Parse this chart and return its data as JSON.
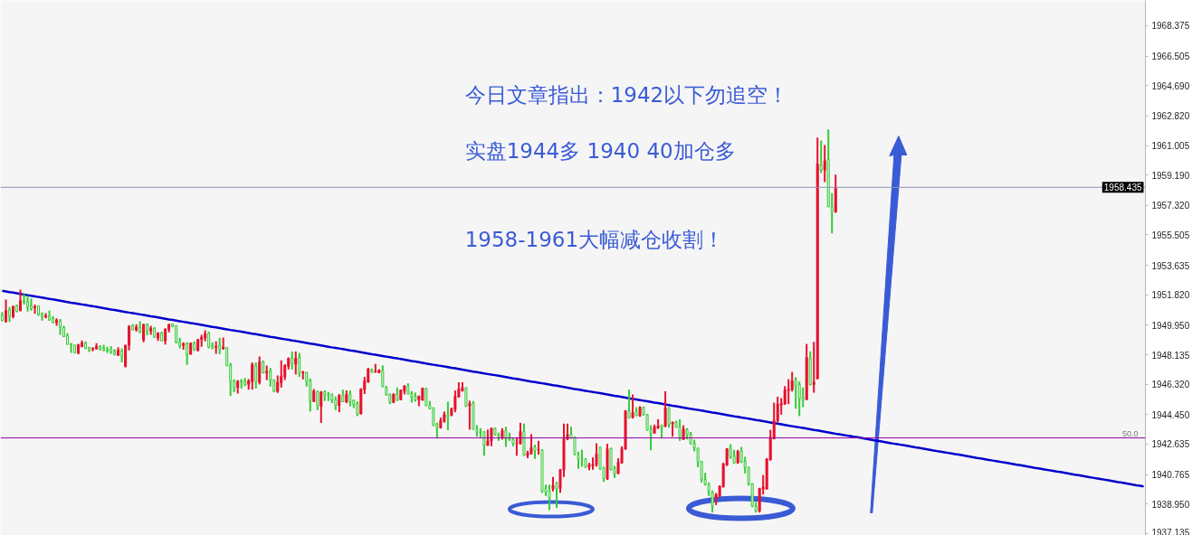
{
  "chart_data": {
    "type": "candlestick",
    "categories": [
      null,
      null,
      null,
      null,
      null,
      null,
      null,
      null,
      null,
      null,
      null,
      null,
      null,
      null,
      null,
      null,
      null,
      null,
      null,
      null,
      null,
      null,
      null,
      null,
      null,
      null,
      null,
      null,
      null,
      null,
      null,
      null,
      null,
      null,
      null,
      null,
      null,
      null,
      null,
      null,
      null,
      null,
      null,
      null,
      null,
      null,
      null,
      null,
      null,
      null,
      null,
      null,
      null,
      null,
      null,
      null,
      null,
      null,
      null,
      null,
      null,
      null,
      null,
      null,
      null,
      null,
      null,
      null,
      null,
      null,
      null,
      null,
      null,
      null,
      null,
      null,
      null,
      null,
      null,
      null,
      null,
      null,
      null,
      null,
      null,
      null,
      null,
      null,
      null,
      null,
      null,
      null,
      null,
      null,
      null,
      null,
      null,
      null,
      null,
      null,
      null,
      null,
      null,
      null,
      null,
      null,
      null,
      null,
      null,
      null,
      null,
      null,
      null,
      null,
      null,
      null,
      null,
      null,
      null,
      null,
      null,
      null,
      null,
      null,
      null,
      null,
      null,
      null,
      null,
      null,
      null,
      null,
      null,
      null,
      null,
      null,
      null,
      null,
      null,
      null,
      null,
      null,
      null,
      null,
      null,
      null,
      null,
      null,
      null,
      null,
      null,
      null,
      null,
      null,
      null,
      null,
      null,
      null,
      null,
      null,
      null,
      null,
      null,
      null,
      null,
      null,
      null,
      null,
      null,
      null,
      null,
      null,
      null,
      null,
      null,
      null,
      null,
      null,
      null,
      null,
      null,
      null,
      null,
      null,
      null,
      null,
      null,
      null,
      null,
      null,
      null,
      null,
      null,
      null,
      null,
      null,
      null,
      null,
      null,
      null,
      null,
      null,
      null,
      null,
      null,
      null,
      null,
      null,
      null,
      null,
      null,
      null,
      null,
      null,
      null,
      null,
      null,
      null,
      null,
      null,
      null,
      null,
      null,
      null,
      null,
      null,
      null,
      null,
      null,
      null,
      null,
      null,
      null,
      null,
      null,
      null,
      null,
      null,
      null,
      null,
      null,
      null,
      null,
      null,
      null,
      null,
      null,
      null,
      null,
      null,
      null,
      null,
      null,
      null,
      null,
      null,
      null,
      null,
      null,
      null,
      null,
      null,
      null,
      null,
      null,
      null,
      null,
      null,
      null,
      null,
      null,
      null,
      null,
      null,
      null,
      null,
      null,
      null,
      null,
      null,
      null,
      null,
      null,
      null,
      null,
      null,
      null,
      null,
      null,
      null,
      null,
      null,
      null,
      null,
      null,
      null,
      null,
      null,
      null,
      null,
      null,
      null,
      null,
      null,
      null,
      null,
      null,
      null,
      null,
      null,
      null,
      null,
      null,
      null,
      null,
      null
    ],
    "ohlc": [
      [
        1950.57,
        1950.77,
        1950.2,
        1950.24
      ],
      [
        1950.2,
        1951.53,
        1950.11,
        1950.85
      ],
      [
        1950.88,
        1951.07,
        1950.16,
        1950.51
      ],
      [
        1950.48,
        1951.12,
        1950.38,
        1951.12
      ],
      [
        1951.16,
        1951.22,
        1950.75,
        1950.79
      ],
      [
        1950.83,
        1952.14,
        1950.83,
        1951.46
      ],
      [
        1951.42,
        1951.87,
        1951.22,
        1951.37
      ],
      [
        1951.37,
        1951.77,
        1950.79,
        1951.09
      ],
      [
        1951.14,
        1951.59,
        1950.85,
        1950.98
      ],
      [
        1951.01,
        1951.22,
        1950.66,
        1951.09
      ],
      [
        1951.14,
        1951.14,
        1950.53,
        1950.62
      ],
      [
        1950.64,
        1950.75,
        1950.24,
        1950.49
      ],
      [
        1950.46,
        1950.7,
        1950.38,
        1950.53
      ],
      [
        1950.51,
        1950.85,
        1950.24,
        1950.27
      ],
      [
        1950.37,
        1950.51,
        1950.07,
        1950.11
      ],
      [
        1950.11,
        1950.38,
        1949.92,
        1950.27
      ],
      [
        1950.2,
        1950.33,
        1949.36,
        1949.83
      ],
      [
        1949.81,
        1949.92,
        1949.22,
        1949.25
      ],
      [
        1949.31,
        1949.46,
        1948.77,
        1948.77
      ],
      [
        1948.81,
        1948.85,
        1948.25,
        1948.77
      ],
      [
        1948.74,
        1948.74,
        1948.25,
        1948.25
      ],
      [
        1948.25,
        1948.81,
        1948.16,
        1948.75
      ],
      [
        1948.64,
        1949.01,
        1948.59,
        1948.86
      ],
      [
        1948.86,
        1948.96,
        1948.48,
        1948.53
      ],
      [
        1948.57,
        1948.62,
        1948.31,
        1948.42
      ],
      [
        1948.49,
        1948.59,
        1948.35,
        1948.53
      ],
      [
        1948.49,
        1948.85,
        1948.48,
        1948.66
      ],
      [
        1948.64,
        1948.72,
        1948.4,
        1948.48
      ],
      [
        1948.53,
        1948.75,
        1948.36,
        1948.4
      ],
      [
        1948.42,
        1948.62,
        1948.25,
        1948.38
      ],
      [
        1948.51,
        1948.66,
        1948.2,
        1948.31
      ],
      [
        1948.33,
        1948.49,
        1948.1,
        1948.16
      ],
      [
        1948.1,
        1948.59,
        1948.07,
        1948.42
      ],
      [
        1948.36,
        1948.53,
        1947.66,
        1948.07
      ],
      [
        1947.42,
        1948.75,
        1947.36,
        1948.72
      ],
      [
        1948.72,
        1949.96,
        1948.4,
        1949.87
      ],
      [
        1949.92,
        1950.01,
        1949.64,
        1949.66
      ],
      [
        1949.68,
        1950.01,
        1949.55,
        1949.83
      ],
      [
        1949.83,
        1950.2,
        1949.46,
        1949.55
      ],
      [
        1949.05,
        1950.01,
        1948.9,
        1950.01
      ],
      [
        1949.97,
        1950.07,
        1949.33,
        1949.6
      ],
      [
        1949.6,
        1949.92,
        1949.36,
        1949.77
      ],
      [
        1949.77,
        1949.83,
        1949.18,
        1949.21
      ],
      [
        1949.16,
        1949.49,
        1948.99,
        1949.49
      ],
      [
        1949.47,
        1949.55,
        1948.96,
        1948.99
      ],
      [
        1948.99,
        1949.77,
        1948.77,
        1949.7
      ],
      [
        1949.7,
        1950.01,
        1949.51,
        1950.01
      ],
      [
        1950.01,
        1950.07,
        1949.83,
        1949.88
      ],
      [
        1949.92,
        1949.92,
        1948.84,
        1948.9
      ],
      [
        1948.9,
        1949.18,
        1948.53,
        1948.71
      ],
      [
        1948.71,
        1948.9,
        1948.44,
        1948.81
      ],
      [
        1948.81,
        1948.9,
        1947.51,
        1948.16
      ],
      [
        1948.16,
        1948.86,
        1948.16,
        1948.86
      ],
      [
        1948.84,
        1948.96,
        1948.38,
        1948.44
      ],
      [
        1948.38,
        1949.08,
        1948.38,
        1949.08
      ],
      [
        1949.08,
        1949.36,
        1948.62,
        1949.2
      ],
      [
        1949.16,
        1949.64,
        1948.96,
        1949.42
      ],
      [
        1949.46,
        1949.55,
        1948.53,
        1948.6
      ],
      [
        1948.7,
        1948.9,
        1948.47,
        1948.58
      ],
      [
        1948.6,
        1948.96,
        1948.2,
        1948.66
      ],
      [
        1948.7,
        1949.18,
        1948.16,
        1948.49
      ],
      [
        1948.51,
        1949.2,
        1948.44,
        1948.6
      ],
      [
        1948.58,
        1948.58,
        1947.45,
        1947.45
      ],
      [
        1947.47,
        1947.64,
        1945.6,
        1946.49
      ],
      [
        1946.53,
        1946.62,
        1945.84,
        1946.1
      ],
      [
        1946.12,
        1946.58,
        1945.75,
        1946.49
      ],
      [
        1946.55,
        1946.64,
        1946.06,
        1946.44
      ],
      [
        1946.47,
        1946.71,
        1946.21,
        1946.27
      ],
      [
        1946.32,
        1946.64,
        1945.99,
        1946.53
      ],
      [
        1946.49,
        1947.66,
        1945.99,
        1947.55
      ],
      [
        1947.47,
        1947.66,
        1946.06,
        1946.44
      ],
      [
        1946.44,
        1948.03,
        1946.31,
        1947.7
      ],
      [
        1947.73,
        1947.77,
        1946.99,
        1947.01
      ],
      [
        1947.01,
        1947.47,
        1946.58,
        1947.1
      ],
      [
        1947.14,
        1947.32,
        1946.18,
        1946.56
      ],
      [
        1946.58,
        1946.62,
        1945.84,
        1945.88
      ],
      [
        1945.88,
        1946.86,
        1945.79,
        1946.44
      ],
      [
        1946.4,
        1947.79,
        1946.12,
        1946.81
      ],
      [
        1946.77,
        1947.55,
        1946.58,
        1947.47
      ],
      [
        1947.42,
        1947.97,
        1947.23,
        1947.92
      ],
      [
        1947.92,
        1948.34,
        1947.23,
        1947.58
      ],
      [
        1947.55,
        1948.34,
        1946.92,
        1947.92
      ],
      [
        1947.97,
        1948.25,
        1946.77,
        1947.01
      ],
      [
        1947.01,
        1947.14,
        1946.62,
        1947.08
      ],
      [
        1947.05,
        1947.08,
        1946.18,
        1946.49
      ],
      [
        1946.53,
        1946.68,
        1944.64,
        1945.29
      ],
      [
        1945.25,
        1946.03,
        1945.25,
        1945.9
      ],
      [
        1945.85,
        1945.94,
        1944.73,
        1945.01
      ],
      [
        1944.97,
        1945.9,
        1943.94,
        1945.85
      ],
      [
        1945.86,
        1945.94,
        1945.29,
        1945.66
      ],
      [
        1945.72,
        1945.85,
        1945.29,
        1945.66
      ],
      [
        1945.7,
        1945.75,
        1945.16,
        1945.35
      ],
      [
        1945.36,
        1945.57,
        1944.73,
        1945.01
      ],
      [
        1945.01,
        1945.72,
        1944.6,
        1945.62
      ],
      [
        1945.62,
        1945.99,
        1945.23,
        1945.25
      ],
      [
        1945.23,
        1945.94,
        1945.16,
        1945.7
      ],
      [
        1945.75,
        1945.94,
        1944.96,
        1945.25
      ],
      [
        1945.33,
        1945.38,
        1944.86,
        1945.05
      ],
      [
        1945.14,
        1945.27,
        1944.36,
        1944.49
      ],
      [
        1944.49,
        1946.07,
        1944.49,
        1946.03
      ],
      [
        1945.99,
        1946.77,
        1945.72,
        1946.53
      ],
      [
        1946.44,
        1947.33,
        1946.44,
        1947.25
      ],
      [
        1947.22,
        1947.29,
        1947.01,
        1947.11
      ],
      [
        1947.07,
        1947.57,
        1947.03,
        1947.12
      ],
      [
        1947.03,
        1947.24,
        1947.01,
        1947.2
      ],
      [
        1947.18,
        1947.48,
        1946.16,
        1946.16
      ],
      [
        1946.12,
        1946.22,
        1945.62,
        1945.66
      ],
      [
        1945.7,
        1945.75,
        1945.1,
        1945.2
      ],
      [
        1945.2,
        1945.75,
        1945.16,
        1945.72
      ],
      [
        1945.7,
        1946.12,
        1945.29,
        1945.35
      ],
      [
        1945.36,
        1945.99,
        1945.35,
        1945.97
      ],
      [
        1945.9,
        1946.23,
        1945.7,
        1946.23
      ],
      [
        1946.23,
        1946.38,
        1945.7,
        1945.72
      ],
      [
        1945.75,
        1945.9,
        1945.2,
        1945.53
      ],
      [
        1945.57,
        1945.81,
        1945.25,
        1945.36
      ],
      [
        1945.36,
        1945.62,
        1944.97,
        1945.59
      ],
      [
        1945.33,
        1946.09,
        1945.33,
        1946.09
      ],
      [
        1946.07,
        1946.09,
        1944.97,
        1945.01
      ],
      [
        1945.01,
        1945.29,
        1944.77,
        1944.83
      ],
      [
        1944.88,
        1944.88,
        1943.77,
        1943.77
      ],
      [
        1943.86,
        1943.96,
        1943.01,
        1943.66
      ],
      [
        1943.64,
        1944.27,
        1943.59,
        1944.09
      ],
      [
        1944.03,
        1944.64,
        1943.96,
        1944.46
      ],
      [
        1944.42,
        1945.25,
        1943.49,
        1944.32
      ],
      [
        1944.4,
        1944.88,
        1944.36,
        1944.82
      ],
      [
        1944.77,
        1945.94,
        1944.6,
        1945.57
      ],
      [
        1945.53,
        1946.44,
        1945.51,
        1946.03
      ],
      [
        1945.9,
        1946.45,
        1945.88,
        1946.12
      ],
      [
        1946.12,
        1946.12,
        1944.92,
        1944.97
      ],
      [
        1944.99,
        1945.31,
        1943.53,
        1945.14
      ],
      [
        1945.14,
        1945.29,
        1943.53,
        1943.56
      ],
      [
        1943.56,
        1943.81,
        1943.1,
        1943.38
      ],
      [
        1943.4,
        1943.62,
        1943.06,
        1943.36
      ],
      [
        1943.4,
        1943.43,
        1941.92,
        1942.55
      ],
      [
        1942.55,
        1943.53,
        1942.55,
        1942.84
      ],
      [
        1942.82,
        1943.62,
        1942.51,
        1943.62
      ],
      [
        1943.62,
        1943.66,
        1943.16,
        1943.21
      ],
      [
        1943.21,
        1943.34,
        1942.84,
        1943.1
      ],
      [
        1943.06,
        1943.62,
        1942.92,
        1943.47
      ],
      [
        1943.47,
        1943.71,
        1942.47,
        1942.97
      ],
      [
        1943.06,
        1943.34,
        1942.84,
        1942.93
      ],
      [
        1942.93,
        1943.03,
        1942.51,
        1942.66
      ],
      [
        1942.66,
        1943.06,
        1941.92,
        1942.69
      ],
      [
        1942.66,
        1943.95,
        1942.62,
        1943.42
      ],
      [
        1943.42,
        1943.9,
        1941.92,
        1941.95
      ],
      [
        1941.92,
        1942.23,
        1941.77,
        1942.1
      ],
      [
        1942.04,
        1943.25,
        1941.99,
        1942.42
      ],
      [
        1942.47,
        1942.6,
        1941.73,
        1942.23
      ],
      [
        1942.27,
        1942.84,
        1941.99,
        1942.3
      ],
      [
        1942.28,
        1942.32,
        1939.64,
        1939.73
      ],
      [
        1939.91,
        1940.14,
        1939.45,
        1939.69
      ],
      [
        1939.78,
        1940.14,
        1938.58,
        1939.32
      ],
      [
        1939.88,
        1940.62,
        1939.73,
        1940.1
      ],
      [
        1940.23,
        1940.32,
        1938.71,
        1939.88
      ],
      [
        1939.91,
        1941.08,
        1939.64,
        1941.08
      ],
      [
        1941.03,
        1943.9,
        1940.62,
        1942.97
      ],
      [
        1942.92,
        1943.9,
        1942.88,
        1943.25
      ],
      [
        1943.25,
        1943.71,
        1942.97,
        1943.03
      ],
      [
        1943.06,
        1943.1,
        1941.95,
        1941.99
      ],
      [
        1941.95,
        1942.17,
        1941.12,
        1941.71
      ],
      [
        1941.75,
        1942.29,
        1941.25,
        1941.71
      ],
      [
        1941.73,
        1941.77,
        1941.17,
        1941.21
      ],
      [
        1941.21,
        1941.49,
        1941.03,
        1941.38
      ],
      [
        1941.3,
        1941.82,
        1941.06,
        1941.43
      ],
      [
        1941.36,
        1942.69,
        1941.25,
        1942.04
      ],
      [
        1942.45,
        1942.47,
        1941.06,
        1941.12
      ],
      [
        1941.17,
        1941.25,
        1940.32,
        1940.51
      ],
      [
        1940.47,
        1942.66,
        1940.47,
        1942.36
      ],
      [
        1942.36,
        1942.42,
        1941.03,
        1941.06
      ],
      [
        1941.15,
        1941.3,
        1940.56,
        1940.82
      ],
      [
        1940.82,
        1941.77,
        1940.8,
        1941.53
      ],
      [
        1941.48,
        1942.5,
        1941.43,
        1942.36
      ],
      [
        1942.32,
        1944.73,
        1942.32,
        1944.69
      ],
      [
        1944.69,
        1945.99,
        1944.21,
        1944.26
      ],
      [
        1944.26,
        1945.69,
        1944.21,
        1944.58
      ],
      [
        1944.63,
        1944.91,
        1944.36,
        1944.39
      ],
      [
        1944.36,
        1944.97,
        1944.32,
        1944.91
      ],
      [
        1944.91,
        1944.95,
        1944.39,
        1944.45
      ],
      [
        1944.45,
        1944.5,
        1943.47,
        1943.5
      ],
      [
        1943.52,
        1943.8,
        1942.26,
        1943.3
      ],
      [
        1943.3,
        1943.84,
        1943.28,
        1943.71
      ],
      [
        1943.62,
        1944.17,
        1943.58,
        1943.76
      ],
      [
        1943.8,
        1943.84,
        1943.02,
        1943.67
      ],
      [
        1943.71,
        1945.89,
        1943.71,
        1944.86
      ],
      [
        1944.86,
        1944.91,
        1943.65,
        1943.84
      ],
      [
        1943.89,
        1944.02,
        1943.1,
        1943.99
      ],
      [
        1943.97,
        1944.08,
        1943.65,
        1943.67
      ],
      [
        1943.71,
        1944.17,
        1942.84,
        1942.97
      ],
      [
        1942.93,
        1943.8,
        1942.91,
        1943.58
      ],
      [
        1943.52,
        1943.62,
        1942.93,
        1943.21
      ],
      [
        1943.25,
        1943.39,
        1942.6,
        1942.65
      ],
      [
        1942.69,
        1942.91,
        1942.19,
        1942.41
      ],
      [
        1942.39,
        1942.41,
        1941.21,
        1941.54
      ],
      [
        1941.58,
        1941.61,
        1940.28,
        1940.47
      ],
      [
        1940.47,
        1940.87,
        1940.09,
        1940.15
      ],
      [
        1940.17,
        1940.28,
        1939.45,
        1939.72
      ],
      [
        1939.67,
        1939.78,
        1938.43,
        1938.83
      ],
      [
        1939.32,
        1939.63,
        1938.89,
        1939.54
      ],
      [
        1939.45,
        1940.09,
        1939.35,
        1940.06
      ],
      [
        1940.0,
        1941.48,
        1939.98,
        1941.43
      ],
      [
        1941.34,
        1942.39,
        1941.3,
        1942.36
      ],
      [
        1942.36,
        1942.63,
        1941.73,
        1941.86
      ],
      [
        1941.91,
        1942.28,
        1941.43,
        1941.48
      ],
      [
        1941.48,
        1942.28,
        1941.43,
        1942.19
      ],
      [
        1942.23,
        1942.47,
        1941.48,
        1941.54
      ],
      [
        1941.58,
        1941.86,
        1940.84,
        1941.21
      ],
      [
        1941.21,
        1941.24,
        1940.09,
        1940.17
      ],
      [
        1940.19,
        1940.24,
        1938.76,
        1938.83
      ],
      [
        1938.8,
        1939.08,
        1938.43,
        1938.52
      ],
      [
        1938.52,
        1939.95,
        1938.43,
        1939.91
      ],
      [
        1939.87,
        1940.74,
        1939.54,
        1940.0
      ],
      [
        1939.87,
        1941.76,
        1939.87,
        1941.73
      ],
      [
        1941.67,
        1943.52,
        1941.62,
        1943.02
      ],
      [
        1942.97,
        1945.19,
        1942.93,
        1944.08
      ],
      [
        1944.08,
        1945.56,
        1943.98,
        1945.1
      ],
      [
        1945.04,
        1945.47,
        1944.45,
        1945.15
      ],
      [
        1945.1,
        1946.21,
        1945.06,
        1945.97
      ],
      [
        1945.93,
        1946.63,
        1945.1,
        1946.02
      ],
      [
        1945.99,
        1947.08,
        1945.87,
        1946.52
      ],
      [
        1946.58,
        1946.76,
        1944.82,
        1946.21
      ],
      [
        1946.3,
        1946.49,
        1944.36,
        1945.43
      ],
      [
        1945.5,
        1946.12,
        1944.91,
        1945.37
      ],
      [
        1945.37,
        1948.8,
        1945.37,
        1947.97
      ],
      [
        1947.91,
        1948.34,
        1946.25,
        1946.3
      ],
      [
        1946.3,
        1948.93,
        1945.8,
        1946.45
      ],
      [
        1946.65,
        1961.5,
        1946.65,
        1959.87
      ],
      [
        1959.79,
        1961.31,
        1959.31,
        1959.49
      ],
      [
        1959.49,
        1961.03,
        1958.75,
        1960.07
      ],
      [
        1960.14,
        1962.0,
        1957.23,
        1957.23
      ],
      [
        1957.23,
        1958.07,
        1955.6,
        1956.94
      ],
      [
        1956.92,
        1959.22,
        1956.86,
        1958.44
      ],
      null,
      null,
      null,
      null,
      null,
      null,
      null,
      null,
      null,
      null,
      null,
      null,
      null,
      null,
      null,
      null,
      null,
      null,
      null,
      null,
      null,
      null,
      null,
      null,
      null,
      null,
      null,
      null,
      null,
      null,
      null,
      null,
      null,
      null,
      null,
      null,
      null,
      null,
      null,
      null,
      null,
      null,
      null,
      null,
      null,
      null,
      null,
      null,
      null,
      null,
      null,
      null,
      null,
      null,
      null,
      null,
      null,
      null,
      null,
      null,
      null,
      null,
      null,
      null,
      null,
      null,
      null,
      null,
      null,
      null,
      null,
      null,
      null,
      null,
      null,
      null,
      null,
      null,
      null,
      null,
      null,
      null,
      null,
      null,
      null
    ],
    "colors": [
      "#33cc33",
      "#e8112d",
      "#33cc33",
      "#e8112d",
      "#33cc33",
      "#e8112d",
      "#33cc33",
      "#33cc33",
      "#33cc33",
      "#e8112d",
      "#33cc33",
      "#33cc33",
      "#e8112d",
      "#33cc33",
      "#33cc33",
      "#e8112d",
      "#33cc33",
      "#33cc33",
      "#33cc33",
      "#33cc33",
      "#33cc33",
      "#e8112d",
      "#e8112d",
      "#33cc33",
      "#33cc33",
      "#e8112d",
      "#e8112d",
      "#33cc33",
      "#33cc33",
      "#33cc33",
      "#33cc33",
      "#33cc33",
      "#e8112d",
      "#33cc33",
      "#e8112d",
      "#e8112d",
      "#33cc33",
      "#e8112d",
      "#33cc33",
      "#e8112d",
      "#33cc33",
      "#e8112d",
      "#33cc33",
      "#e8112d",
      "#33cc33",
      "#e8112d",
      "#e8112d",
      "#33cc33",
      "#33cc33",
      "#33cc33",
      "#e8112d",
      "#33cc33",
      "#e8112d",
      "#33cc33",
      "#e8112d",
      "#e8112d",
      "#e8112d",
      "#33cc33",
      "#33cc33",
      "#e8112d",
      "#33cc33",
      "#e8112d",
      "#33cc33",
      "#33cc33",
      "#33cc33",
      "#e8112d",
      "#33cc33",
      "#33cc33",
      "#e8112d",
      "#e8112d",
      "#33cc33",
      "#e8112d",
      "#33cc33",
      "#e8112d",
      "#33cc33",
      "#33cc33",
      "#e8112d",
      "#e8112d",
      "#e8112d",
      "#e8112d",
      "#33cc33",
      "#e8112d",
      "#33cc33",
      "#e8112d",
      "#33cc33",
      "#33cc33",
      "#e8112d",
      "#33cc33",
      "#e8112d",
      "#33cc33",
      "#33cc33",
      "#33cc33",
      "#33cc33",
      "#e8112d",
      "#33cc33",
      "#e8112d",
      "#33cc33",
      "#33cc33",
      "#33cc33",
      "#e8112d",
      "#e8112d",
      "#e8112d",
      "#33cc33",
      "#e8112d",
      "#e8112d",
      "#33cc33",
      "#33cc33",
      "#33cc33",
      "#e8112d",
      "#33cc33",
      "#e8112d",
      "#e8112d",
      "#33cc33",
      "#33cc33",
      "#33cc33",
      "#e8112d",
      "#e8112d",
      "#33cc33",
      "#33cc33",
      "#33cc33",
      "#33cc33",
      "#e8112d",
      "#e8112d",
      "#33cc33",
      "#e8112d",
      "#e8112d",
      "#e8112d",
      "#e8112d",
      "#33cc33",
      "#e8112d",
      "#33cc33",
      "#33cc33",
      "#33cc33",
      "#33cc33",
      "#e8112d",
      "#e8112d",
      "#33cc33",
      "#33cc33",
      "#e8112d",
      "#33cc33",
      "#33cc33",
      "#33cc33",
      "#e8112d",
      "#e8112d",
      "#33cc33",
      "#e8112d",
      "#e8112d",
      "#33cc33",
      "#e8112d",
      "#33cc33",
      "#33cc33",
      "#33cc33",
      "#e8112d",
      "#33cc33",
      "#e8112d",
      "#e8112d",
      "#e8112d",
      "#33cc33",
      "#33cc33",
      "#33cc33",
      "#33cc33",
      "#33cc33",
      "#e8112d",
      "#e8112d",
      "#e8112d",
      "#33cc33",
      "#33cc33",
      "#e8112d",
      "#33cc33",
      "#33cc33",
      "#e8112d",
      "#e8112d",
      "#e8112d",
      "#33cc33",
      "#e8112d",
      "#33cc33",
      "#e8112d",
      "#33cc33",
      "#33cc33",
      "#33cc33",
      "#e8112d",
      "#e8112d",
      "#33cc33",
      "#e8112d",
      "#33cc33",
      "#e8112d",
      "#33cc33",
      "#33cc33",
      "#e8112d",
      "#33cc33",
      "#33cc33",
      "#33cc33",
      "#33cc33",
      "#33cc33",
      "#33cc33",
      "#33cc33",
      "#33cc33",
      "#e8112d",
      "#e8112d",
      "#e8112d",
      "#e8112d",
      "#33cc33",
      "#33cc33",
      "#e8112d",
      "#33cc33",
      "#33cc33",
      "#33cc33",
      "#33cc33",
      "#33cc33",
      "#e8112d",
      "#e8112d",
      "#e8112d",
      "#e8112d",
      "#e8112d",
      "#e8112d",
      "#e8112d",
      "#e8112d",
      "#e8112d",
      "#e8112d",
      "#33cc33",
      "#33cc33",
      "#33cc33",
      "#e8112d",
      "#33cc33",
      "#e8112d",
      "#e8112d",
      "#33cc33",
      "#e8112d",
      "#33cc33",
      "#33cc33",
      "#e8112d",
      null,
      null,
      null,
      null,
      null,
      null,
      null,
      null,
      null,
      null,
      null,
      null,
      null,
      null,
      null,
      null,
      null,
      null,
      null,
      null,
      null,
      null,
      null,
      null,
      null,
      null,
      null,
      null,
      null,
      null,
      null,
      null,
      null,
      null,
      null,
      null,
      null,
      null,
      null,
      null,
      null,
      null,
      null,
      null,
      null,
      null,
      null,
      null,
      null,
      null,
      null,
      null,
      null,
      null,
      null,
      null,
      null,
      null,
      null,
      null,
      null,
      null,
      null,
      null,
      null,
      null,
      null,
      null,
      null,
      null,
      null,
      null,
      null,
      null,
      null,
      null,
      null,
      null,
      null,
      null,
      null,
      null,
      null,
      null,
      null
    ],
    "series": [
      {
        "type": "line",
        "color": "#0000cc",
        "values": [
          1952.07,
          1952.03,
          1951.99,
          1951.96,
          1951.92,
          1951.88,
          1951.84,
          1951.8,
          1951.76,
          1951.73,
          1951.69,
          1951.65,
          1951.61,
          1951.57,
          1951.54,
          1951.5,
          1951.46,
          1951.42,
          1951.38,
          1951.34,
          1951.31,
          1951.27,
          1951.23,
          1951.19,
          1951.15,
          1951.12,
          1951.08,
          1951.04,
          1951.0,
          1950.96,
          1950.92,
          1950.89,
          1950.85,
          1950.81,
          1950.77,
          1950.73,
          1950.7,
          1950.66,
          1950.62,
          1950.58,
          1950.54,
          1950.5,
          1950.47,
          1950.43,
          1950.39,
          1950.35,
          1950.31,
          1950.28,
          1950.24,
          1950.2,
          1950.16,
          1950.12,
          1950.08,
          1950.05,
          1950.01,
          1949.97,
          1949.93,
          1949.89,
          1949.85,
          1949.82,
          1949.78,
          1949.74,
          1949.7,
          1949.66,
          1949.63,
          1949.59,
          1949.55,
          1949.51,
          1949.47,
          1949.43,
          1949.4,
          1949.36,
          1949.32,
          1949.28,
          1949.24,
          1949.21,
          1949.17,
          1949.13,
          1949.09,
          1949.05,
          1949.01,
          1948.98,
          1948.94,
          1948.9,
          1948.86,
          1948.82,
          1948.79,
          1948.75,
          1948.71,
          1948.67,
          1948.63,
          1948.59,
          1948.56,
          1948.52,
          1948.48,
          1948.44,
          1948.4,
          1948.37,
          1948.33,
          1948.29,
          1948.25,
          1948.21,
          1948.17,
          1948.14,
          1948.1,
          1948.06,
          1948.02,
          1947.98,
          1947.94,
          1947.91,
          1947.87,
          1947.83,
          1947.79,
          1947.75,
          1947.72,
          1947.68,
          1947.64,
          1947.6,
          1947.56,
          1947.52,
          1947.49,
          1947.45,
          1947.41,
          1947.37,
          1947.33,
          1947.3,
          1947.26,
          1947.22,
          1947.18,
          1947.14,
          1947.1,
          1947.07,
          1947.03,
          1946.99,
          1946.95,
          1946.91,
          1946.88,
          1946.84,
          1946.8,
          1946.76,
          1946.72,
          1946.68,
          1946.65,
          1946.61,
          1946.57,
          1946.53,
          1946.49,
          1946.46,
          1946.42,
          1946.38,
          1946.34,
          1946.3,
          1946.26,
          1946.23,
          1946.19,
          1946.15,
          1946.11,
          1946.07,
          1946.03,
          1946.0,
          1945.96,
          1945.92,
          1945.88,
          1945.84,
          1945.81,
          1945.77,
          1945.73,
          1945.69,
          1945.65,
          1945.61,
          1945.58,
          1945.54,
          1945.5,
          1945.46,
          1945.42,
          1945.39,
          1945.35,
          1945.31,
          1945.27,
          1945.23,
          1945.19,
          1945.16,
          1945.12,
          1945.08,
          1945.04,
          1945.0,
          1944.97,
          1944.93,
          1944.89,
          1944.85,
          1944.81,
          1944.77,
          1944.74,
          1944.7,
          1944.66,
          1944.62,
          1944.58,
          1944.55,
          1944.51,
          1944.47,
          1944.43,
          1944.39,
          1944.35,
          1944.32,
          1944.28,
          1944.24,
          1944.2,
          1944.16,
          1944.12,
          1944.09,
          1944.05,
          1944.01,
          1943.97,
          1943.93,
          1943.9,
          1943.86,
          1943.82,
          1943.78,
          1943.74,
          1943.7,
          1943.67,
          1943.63,
          1943.59,
          1943.55,
          1943.51,
          1943.48,
          1943.44,
          1943.4,
          1943.36,
          1943.32,
          1943.28,
          1943.25,
          1943.21,
          1943.17,
          1943.13,
          1943.09,
          1943.06,
          1943.02,
          1942.98,
          1942.94,
          1942.9,
          1942.86,
          1942.83,
          1942.79,
          1942.75,
          1942.71,
          1942.67,
          1942.64,
          1942.6,
          1942.56,
          1942.52,
          1942.48,
          1942.44,
          1942.41,
          1942.37,
          1942.33,
          1942.29,
          1942.25,
          1942.21,
          1942.18,
          1942.14,
          1942.1,
          1942.06,
          1942.02,
          1941.99,
          1941.95,
          1941.91,
          1941.87,
          1941.83,
          1941.79,
          1941.76,
          1941.72,
          1941.68,
          1941.64,
          1941.6,
          1941.57,
          1941.53,
          1941.49,
          1941.45,
          1941.41,
          1941.37,
          1941.34,
          1941.3,
          1941.26,
          1941.22,
          1941.18,
          1941.15,
          1941.11,
          1941.07,
          1941.03,
          1940.99,
          1940.95,
          1940.92,
          1940.88,
          1940.84,
          1940.8,
          1940.76,
          1940.73,
          1940.69,
          1940.65,
          1940.61,
          1940.57,
          1940.53,
          1940.5,
          1940.46,
          1940.42,
          1940.38,
          1940.34,
          1940.3,
          1940.27,
          1940.23,
          1940.19,
          1940.15,
          1940.11,
          1940.08,
          1940.04
        ]
      }
    ],
    "ylim": [
      1937.02,
      1969.93
    ],
    "yticks": [
      1937.135,
      {
        "value": 1938.95,
        "label": "1938.950"
      },
      1940.765,
      1942.635,
      {
        "value": 1944.45,
        "label": "1944.450"
      },
      {
        "value": 1946.32,
        "label": "1946.320"
      },
      1948.135,
      {
        "value": 1949.95,
        "label": "1949.950"
      },
      {
        "value": 1951.82,
        "label": "1951.820"
      },
      1953.635,
      1955.505,
      {
        "value": 1957.32,
        "label": "1957.320"
      },
      {
        "value": 1959.19,
        "label": "1959.190"
      },
      1961.005,
      {
        "value": 1962.82,
        "label": "1962.820"
      },
      {
        "value": 1964.69,
        "label": "1964.690"
      },
      1966.505,
      1968.375
    ],
    "tick_labels": "y",
    "ref_lines": [
      {
        "axis": "y",
        "value": 1958.435,
        "label": "1958.435",
        "color": "#8f8fb0"
      },
      {
        "axis": "y",
        "value": 1943.02,
        "color": "#9400a0"
      }
    ],
    "annotations": [
      "今日文章指出：1942以下勿追空！",
      "实盘1944多 1940 40加仓多",
      "1958-1961大幅减仓收割！",
      {
        "text": "50.0",
        "y": 1943.02
      }
    ]
  }
}
